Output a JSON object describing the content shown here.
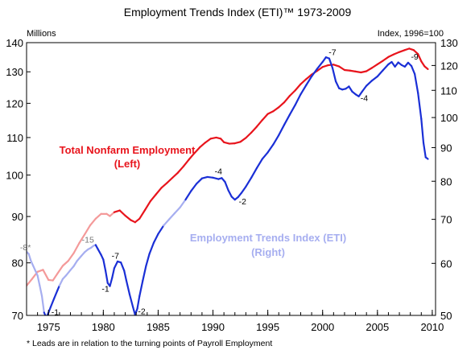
{
  "chart_data": {
    "type": "line",
    "title": "Employment Trends Index (ETI)™   1973-2009",
    "left_axis": {
      "unit_label": "Millions",
      "ticks": [
        70,
        80,
        90,
        100,
        110,
        120,
        130,
        140
      ],
      "range": [
        70,
        140
      ],
      "scale": "log"
    },
    "right_axis": {
      "unit_label": "Index, 1996=100",
      "ticks": [
        50,
        60,
        70,
        80,
        90,
        100,
        110,
        120,
        130
      ],
      "range": [
        50,
        130
      ],
      "scale": "log"
    },
    "x_axis": {
      "ticks": [
        1975,
        1980,
        1985,
        1990,
        1995,
        2000,
        2005,
        2010
      ],
      "range": [
        1973,
        2010.3
      ]
    },
    "grid": false,
    "series": [
      {
        "name": "Total Nonfarm Employment",
        "label_line1": "Total Nonfarm Employment",
        "label_line2": "(Left)",
        "axis": "left",
        "color": "#e8141c",
        "faded_color": "#f49a9a",
        "faded_until": 1981.0,
        "points": [
          [
            1973.0,
            75.5
          ],
          [
            1973.5,
            76.8
          ],
          [
            1974.0,
            78.2
          ],
          [
            1974.5,
            78.6
          ],
          [
            1975.0,
            76.6
          ],
          [
            1975.4,
            76.5
          ],
          [
            1975.8,
            77.8
          ],
          [
            1976.3,
            79.4
          ],
          [
            1976.8,
            80.4
          ],
          [
            1977.3,
            82.0
          ],
          [
            1977.8,
            84.1
          ],
          [
            1978.3,
            86.0
          ],
          [
            1978.8,
            88.0
          ],
          [
            1979.3,
            89.5
          ],
          [
            1979.8,
            90.6
          ],
          [
            1980.3,
            90.6
          ],
          [
            1980.6,
            90.1
          ],
          [
            1981.0,
            91.0
          ],
          [
            1981.5,
            91.4
          ],
          [
            1982.0,
            90.2
          ],
          [
            1982.5,
            89.2
          ],
          [
            1982.9,
            88.7
          ],
          [
            1983.3,
            89.5
          ],
          [
            1983.8,
            91.5
          ],
          [
            1984.3,
            93.6
          ],
          [
            1984.8,
            95.2
          ],
          [
            1985.3,
            96.8
          ],
          [
            1985.8,
            98.0
          ],
          [
            1986.3,
            99.3
          ],
          [
            1986.8,
            100.6
          ],
          [
            1987.3,
            102.2
          ],
          [
            1987.8,
            104.0
          ],
          [
            1988.3,
            105.7
          ],
          [
            1988.8,
            107.3
          ],
          [
            1989.3,
            108.6
          ],
          [
            1989.8,
            109.7
          ],
          [
            1990.3,
            110.0
          ],
          [
            1990.7,
            109.7
          ],
          [
            1991.0,
            108.7
          ],
          [
            1991.5,
            108.3
          ],
          [
            1992.0,
            108.4
          ],
          [
            1992.5,
            108.8
          ],
          [
            1993.0,
            109.9
          ],
          [
            1993.5,
            111.4
          ],
          [
            1994.0,
            113.1
          ],
          [
            1994.5,
            115.0
          ],
          [
            1995.0,
            116.8
          ],
          [
            1995.5,
            117.6
          ],
          [
            1996.0,
            118.8
          ],
          [
            1996.5,
            120.3
          ],
          [
            1997.0,
            122.3
          ],
          [
            1997.5,
            124.0
          ],
          [
            1998.0,
            126.0
          ],
          [
            1998.5,
            127.6
          ],
          [
            1999.0,
            129.1
          ],
          [
            1999.5,
            130.3
          ],
          [
            2000.0,
            131.6
          ],
          [
            2000.5,
            132.2
          ],
          [
            2001.0,
            132.4
          ],
          [
            2001.5,
            131.8
          ],
          [
            2002.0,
            130.6
          ],
          [
            2002.5,
            130.4
          ],
          [
            2003.0,
            130.1
          ],
          [
            2003.5,
            129.8
          ],
          [
            2004.0,
            130.2
          ],
          [
            2004.5,
            131.3
          ],
          [
            2005.0,
            132.5
          ],
          [
            2005.5,
            133.7
          ],
          [
            2006.0,
            135.0
          ],
          [
            2006.5,
            135.9
          ],
          [
            2007.0,
            136.7
          ],
          [
            2007.5,
            137.4
          ],
          [
            2007.9,
            137.9
          ],
          [
            2008.3,
            137.4
          ],
          [
            2008.7,
            136.0
          ],
          [
            2009.0,
            133.5
          ],
          [
            2009.3,
            131.8
          ],
          [
            2009.6,
            130.9
          ]
        ]
      },
      {
        "name": "Employment Trends Index (ETI)",
        "label_line1": "Employment Trends Index (ETI)",
        "label_line2": "(Right)",
        "axis": "right",
        "color": "#1a2fd6",
        "faded_color": "#a6aef0",
        "faded_ranges": [
          [
            1973.0,
            1974.6
          ],
          [
            1976.0,
            1979.3
          ],
          [
            1985.5,
            1987.5
          ]
        ],
        "points": [
          [
            1973.0,
            62.5
          ],
          [
            1973.2,
            62.0
          ],
          [
            1973.4,
            60.5
          ],
          [
            1973.6,
            59.5
          ],
          [
            1973.8,
            58.5
          ],
          [
            1974.0,
            57.5
          ],
          [
            1974.2,
            55.5
          ],
          [
            1974.4,
            53.5
          ],
          [
            1974.6,
            50.5
          ],
          [
            1974.8,
            49.6
          ],
          [
            1975.0,
            50.5
          ],
          [
            1975.2,
            51.5
          ],
          [
            1975.5,
            53.0
          ],
          [
            1975.8,
            54.5
          ],
          [
            1976.0,
            55.5
          ],
          [
            1976.3,
            56.8
          ],
          [
            1976.6,
            57.5
          ],
          [
            1977.0,
            58.6
          ],
          [
            1977.3,
            59.4
          ],
          [
            1977.6,
            60.5
          ],
          [
            1978.0,
            61.6
          ],
          [
            1978.3,
            62.4
          ],
          [
            1978.6,
            63.0
          ],
          [
            1978.9,
            63.4
          ],
          [
            1979.1,
            63.8
          ],
          [
            1979.3,
            64.0
          ],
          [
            1979.5,
            63.1
          ],
          [
            1979.8,
            61.8
          ],
          [
            1980.0,
            60.8
          ],
          [
            1980.2,
            58.5
          ],
          [
            1980.4,
            56.0
          ],
          [
            1980.6,
            55.4
          ],
          [
            1980.8,
            57.0
          ],
          [
            1981.0,
            59.0
          ],
          [
            1981.3,
            60.4
          ],
          [
            1981.6,
            60.2
          ],
          [
            1981.9,
            58.5
          ],
          [
            1982.1,
            56.5
          ],
          [
            1982.4,
            53.8
          ],
          [
            1982.7,
            51.5
          ],
          [
            1982.9,
            50.1
          ],
          [
            1983.1,
            51.2
          ],
          [
            1983.3,
            53.5
          ],
          [
            1983.6,
            56.5
          ],
          [
            1983.9,
            59.5
          ],
          [
            1984.2,
            62.0
          ],
          [
            1984.6,
            64.5
          ],
          [
            1985.0,
            66.5
          ],
          [
            1985.5,
            68.5
          ],
          [
            1986.0,
            70.0
          ],
          [
            1986.5,
            71.5
          ],
          [
            1987.0,
            73.0
          ],
          [
            1987.5,
            75.0
          ],
          [
            1988.0,
            77.3
          ],
          [
            1988.5,
            79.3
          ],
          [
            1989.0,
            80.8
          ],
          [
            1989.5,
            81.2
          ],
          [
            1990.0,
            81.0
          ],
          [
            1990.5,
            80.6
          ],
          [
            1990.8,
            80.9
          ],
          [
            1991.1,
            79.8
          ],
          [
            1991.4,
            77.5
          ],
          [
            1991.7,
            75.8
          ],
          [
            1992.0,
            75.0
          ],
          [
            1992.3,
            75.7
          ],
          [
            1992.6,
            76.8
          ],
          [
            1993.0,
            78.5
          ],
          [
            1993.5,
            81.0
          ],
          [
            1994.0,
            83.8
          ],
          [
            1994.5,
            86.5
          ],
          [
            1995.0,
            88.5
          ],
          [
            1995.5,
            91.0
          ],
          [
            1996.0,
            94.0
          ],
          [
            1996.5,
            97.5
          ],
          [
            1997.0,
            101.0
          ],
          [
            1997.5,
            104.5
          ],
          [
            1998.0,
            108.5
          ],
          [
            1998.5,
            112.0
          ],
          [
            1999.0,
            115.5
          ],
          [
            1999.5,
            118.6
          ],
          [
            2000.0,
            121.5
          ],
          [
            2000.3,
            123.5
          ],
          [
            2000.6,
            123.0
          ],
          [
            2000.9,
            119.0
          ],
          [
            2001.2,
            113.5
          ],
          [
            2001.5,
            110.8
          ],
          [
            2001.8,
            110.3
          ],
          [
            2002.1,
            110.6
          ],
          [
            2002.4,
            111.5
          ],
          [
            2002.7,
            109.5
          ],
          [
            2003.0,
            108.5
          ],
          [
            2003.3,
            107.7
          ],
          [
            2003.6,
            109.5
          ],
          [
            2004.0,
            111.8
          ],
          [
            2004.5,
            113.8
          ],
          [
            2005.0,
            115.5
          ],
          [
            2005.5,
            118.0
          ],
          [
            2006.0,
            120.5
          ],
          [
            2006.3,
            121.5
          ],
          [
            2006.6,
            119.5
          ],
          [
            2006.9,
            121.3
          ],
          [
            2007.2,
            120.2
          ],
          [
            2007.5,
            119.5
          ],
          [
            2007.8,
            121.2
          ],
          [
            2008.1,
            119.8
          ],
          [
            2008.4,
            116.5
          ],
          [
            2008.7,
            109.0
          ],
          [
            2009.0,
            99.5
          ],
          [
            2009.2,
            91.5
          ],
          [
            2009.4,
            87.0
          ],
          [
            2009.6,
            86.5
          ]
        ]
      }
    ],
    "annotations": [
      {
        "text": "-8*",
        "x": 1972.9,
        "yr": 62.8,
        "faded": true
      },
      {
        "text": "-1",
        "x": 1975.6,
        "yr": 50.1,
        "faded": false
      },
      {
        "text": "-15",
        "x": 1978.6,
        "yr": 64.5,
        "faded": true
      },
      {
        "text": "-7",
        "x": 1981.1,
        "yr": 61.0,
        "faded": false
      },
      {
        "text": "-1",
        "x": 1980.2,
        "yr": 54.3,
        "faded": false
      },
      {
        "text": "-2",
        "x": 1983.5,
        "yr": 50.2,
        "faded": false
      },
      {
        "text": "-4",
        "x": 1990.5,
        "yr": 82.0,
        "faded": false
      },
      {
        "text": "-2",
        "x": 1992.7,
        "yr": 73.8,
        "faded": false
      },
      {
        "text": "-7",
        "x": 2000.9,
        "yr": 124.5,
        "faded": false
      },
      {
        "text": "-4",
        "x": 2003.8,
        "yr": 106.0,
        "faded": false
      },
      {
        "text": "-9",
        "x": 2008.4,
        "yr": 122.6,
        "faded": false
      }
    ]
  },
  "footnote": "* Leads are in relation to the turning points of Payroll Employment"
}
